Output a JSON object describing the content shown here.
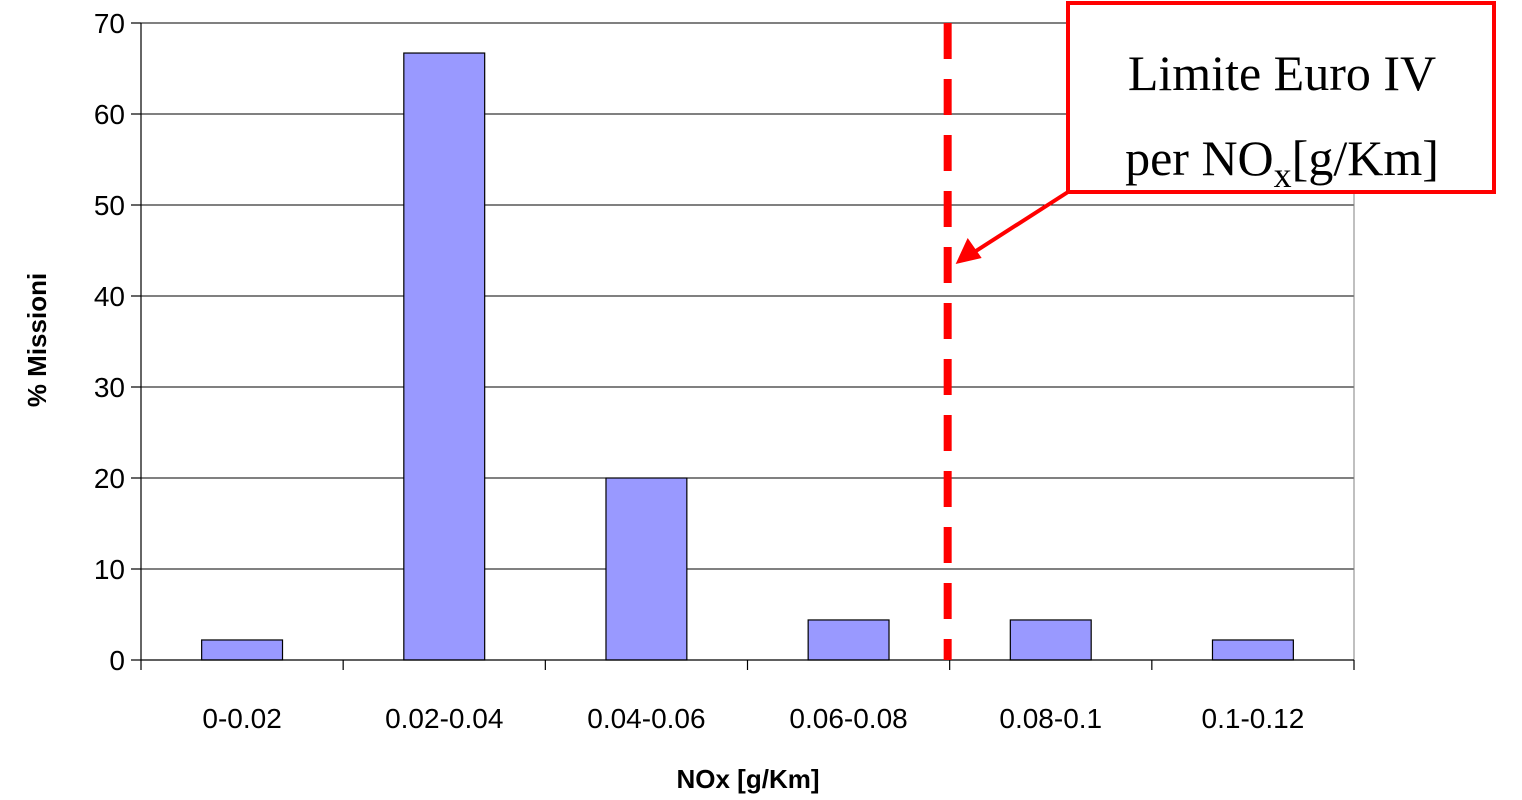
{
  "chart_data": {
    "type": "bar",
    "title": "",
    "xlabel": "NOx [g/Km]",
    "ylabel": "% Missioni",
    "categories": [
      "0-0.02",
      "0.02-0.04",
      "0.04-0.06",
      "0.06-0.08",
      "0.08-0.1",
      "0.1-0.12"
    ],
    "series": [
      {
        "values": [
          2.2,
          66.7,
          20,
          4.4,
          4.4,
          2.2
        ]
      }
    ],
    "ylim": [
      0,
      70
    ],
    "yticks": [
      0,
      10,
      20,
      30,
      40,
      50,
      60,
      70
    ],
    "grid": true,
    "legend": "none",
    "bar_color": "#9999ff",
    "threshold": {
      "x": 0.08,
      "style": "dashed",
      "color": "#ff0000"
    },
    "annotation": {
      "line1": "Limite Euro IV",
      "line2_prefix": "per NO",
      "line2_sub": "x",
      "line2_suffix": "[g/Km]",
      "border_color": "#ff0000"
    }
  }
}
